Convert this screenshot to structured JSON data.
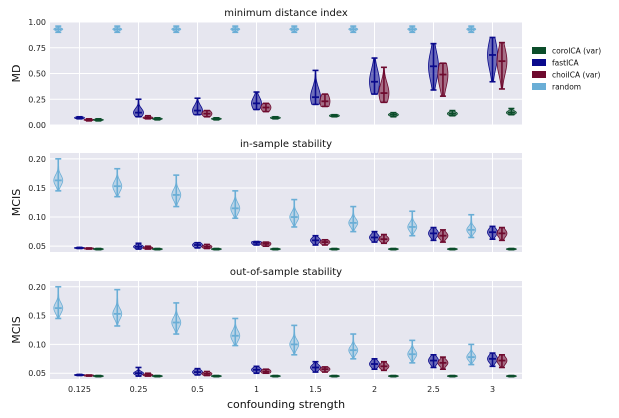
{
  "colors": {
    "coroICA (var)": "#0b4d2a",
    "fastICA": "#0a0a8c",
    "choiICA (var)": "#6e0a2e",
    "random": "#6aaed6",
    "panel_bg": "#e6e6ef"
  },
  "chart_data": [
    {
      "type": "violin",
      "title": "minimum distance index",
      "ylabel": "MD",
      "ylim": [
        0.0,
        1.0
      ],
      "yticks": [
        0.0,
        0.25,
        0.5,
        0.75,
        1.0
      ],
      "ytick_labels": [
        "0.00",
        "0.25",
        "0.50",
        "0.75",
        "1.00"
      ],
      "xlabel": "",
      "categories": [
        "0.125",
        "0.25",
        "0.5",
        "1",
        "1.5",
        "2",
        "2.5",
        "3"
      ],
      "series": [
        {
          "name": "random",
          "median": [
            0.93,
            0.93,
            0.93,
            0.93,
            0.93,
            0.93,
            0.93,
            0.93
          ],
          "low": [
            0.9,
            0.9,
            0.9,
            0.9,
            0.9,
            0.9,
            0.9,
            0.9
          ],
          "high": [
            0.96,
            0.96,
            0.96,
            0.96,
            0.96,
            0.96,
            0.96,
            0.96
          ],
          "spread": [
            0.012,
            0.012,
            0.012,
            0.012,
            0.012,
            0.012,
            0.012,
            0.012
          ]
        },
        {
          "name": "fastICA",
          "median": [
            0.07,
            0.12,
            0.14,
            0.21,
            0.27,
            0.42,
            0.57,
            0.68
          ],
          "low": [
            0.06,
            0.08,
            0.1,
            0.15,
            0.2,
            0.3,
            0.34,
            0.42
          ],
          "high": [
            0.08,
            0.25,
            0.26,
            0.32,
            0.53,
            0.65,
            0.79,
            0.85
          ],
          "spread": [
            0.01,
            0.04,
            0.05,
            0.06,
            0.09,
            0.12,
            0.14,
            0.14
          ]
        },
        {
          "name": "choiICA (var)",
          "median": [
            0.05,
            0.07,
            0.11,
            0.17,
            0.23,
            0.31,
            0.49,
            0.62
          ],
          "low": [
            0.04,
            0.06,
            0.08,
            0.13,
            0.18,
            0.22,
            0.28,
            0.35
          ],
          "high": [
            0.06,
            0.09,
            0.14,
            0.21,
            0.3,
            0.56,
            0.6,
            0.8
          ],
          "spread": [
            0.008,
            0.01,
            0.03,
            0.04,
            0.07,
            0.1,
            0.13,
            0.13
          ]
        },
        {
          "name": "coroICA (var)",
          "median": [
            0.05,
            0.06,
            0.06,
            0.07,
            0.09,
            0.1,
            0.11,
            0.12
          ],
          "low": [
            0.04,
            0.05,
            0.05,
            0.06,
            0.08,
            0.08,
            0.09,
            0.1
          ],
          "high": [
            0.06,
            0.07,
            0.07,
            0.08,
            0.1,
            0.12,
            0.14,
            0.16
          ],
          "spread": [
            0.008,
            0.008,
            0.008,
            0.01,
            0.012,
            0.015,
            0.018,
            0.018
          ]
        }
      ]
    },
    {
      "type": "violin",
      "title": "in-sample stability",
      "ylabel": "MCIS",
      "ylim": [
        0.04,
        0.21
      ],
      "yticks": [
        0.05,
        0.1,
        0.15,
        0.2
      ],
      "ytick_labels": [
        "0.05",
        "0.10",
        "0.15",
        "0.20"
      ],
      "xlabel": "",
      "categories": [
        "0.125",
        "0.25",
        "0.5",
        "1",
        "1.5",
        "2",
        "2.5",
        "3"
      ],
      "series": [
        {
          "name": "random",
          "median": [
            0.163,
            0.153,
            0.138,
            0.115,
            0.1,
            0.09,
            0.083,
            0.078
          ],
          "low": [
            0.145,
            0.135,
            0.118,
            0.098,
            0.083,
            0.075,
            0.068,
            0.065
          ],
          "high": [
            0.2,
            0.183,
            0.172,
            0.145,
            0.13,
            0.118,
            0.11,
            0.104
          ],
          "spread": [
            0.009,
            0.009,
            0.009,
            0.009,
            0.008,
            0.007,
            0.007,
            0.006
          ]
        },
        {
          "name": "fastICA",
          "median": [
            0.047,
            0.049,
            0.052,
            0.056,
            0.06,
            0.065,
            0.072,
            0.074
          ],
          "low": [
            0.046,
            0.045,
            0.047,
            0.052,
            0.052,
            0.057,
            0.06,
            0.062
          ],
          "high": [
            0.048,
            0.055,
            0.056,
            0.058,
            0.068,
            0.075,
            0.082,
            0.084
          ],
          "spread": [
            0.002,
            0.003,
            0.004,
            0.004,
            0.005,
            0.006,
            0.007,
            0.007
          ]
        },
        {
          "name": "choiICA (var)",
          "median": [
            0.046,
            0.047,
            0.049,
            0.054,
            0.057,
            0.062,
            0.068,
            0.072
          ],
          "low": [
            0.045,
            0.045,
            0.046,
            0.05,
            0.052,
            0.055,
            0.057,
            0.06
          ],
          "high": [
            0.047,
            0.05,
            0.053,
            0.057,
            0.061,
            0.07,
            0.078,
            0.082
          ],
          "spread": [
            0.0015,
            0.002,
            0.003,
            0.004,
            0.004,
            0.005,
            0.006,
            0.007
          ]
        },
        {
          "name": "coroICA (var)",
          "median": [
            0.045,
            0.045,
            0.045,
            0.045,
            0.045,
            0.045,
            0.045,
            0.045
          ],
          "low": [
            0.044,
            0.044,
            0.044,
            0.044,
            0.044,
            0.044,
            0.044,
            0.044
          ],
          "high": [
            0.046,
            0.046,
            0.046,
            0.046,
            0.046,
            0.046,
            0.046,
            0.046
          ],
          "spread": [
            0.0015,
            0.0015,
            0.0015,
            0.0015,
            0.0015,
            0.0015,
            0.0015,
            0.0015
          ]
        }
      ]
    },
    {
      "type": "violin",
      "title": "out-of-sample stability",
      "ylabel": "MCIS",
      "ylim": [
        0.04,
        0.21
      ],
      "yticks": [
        0.05,
        0.1,
        0.15,
        0.2
      ],
      "ytick_labels": [
        "0.05",
        "0.10",
        "0.15",
        "0.20"
      ],
      "xlabel": "confounding strength",
      "categories": [
        "0.125",
        "0.25",
        "0.5",
        "1",
        "1.5",
        "2",
        "2.5",
        "3"
      ],
      "series": [
        {
          "name": "random",
          "median": [
            0.163,
            0.153,
            0.138,
            0.115,
            0.1,
            0.09,
            0.083,
            0.078
          ],
          "low": [
            0.145,
            0.132,
            0.118,
            0.098,
            0.082,
            0.075,
            0.068,
            0.065
          ],
          "high": [
            0.2,
            0.195,
            0.172,
            0.145,
            0.133,
            0.118,
            0.107,
            0.1
          ],
          "spread": [
            0.009,
            0.009,
            0.009,
            0.009,
            0.008,
            0.007,
            0.007,
            0.006
          ]
        },
        {
          "name": "fastICA",
          "median": [
            0.047,
            0.05,
            0.052,
            0.056,
            0.06,
            0.066,
            0.072,
            0.075
          ],
          "low": [
            0.046,
            0.045,
            0.047,
            0.05,
            0.052,
            0.057,
            0.06,
            0.062
          ],
          "high": [
            0.048,
            0.06,
            0.058,
            0.062,
            0.07,
            0.075,
            0.082,
            0.085
          ],
          "spread": [
            0.002,
            0.003,
            0.004,
            0.004,
            0.005,
            0.006,
            0.007,
            0.007
          ]
        },
        {
          "name": "choiICA (var)",
          "median": [
            0.046,
            0.047,
            0.049,
            0.053,
            0.057,
            0.062,
            0.068,
            0.072
          ],
          "low": [
            0.045,
            0.045,
            0.046,
            0.05,
            0.052,
            0.055,
            0.057,
            0.06
          ],
          "high": [
            0.047,
            0.05,
            0.053,
            0.057,
            0.061,
            0.07,
            0.078,
            0.082
          ],
          "spread": [
            0.0015,
            0.002,
            0.003,
            0.004,
            0.004,
            0.005,
            0.006,
            0.007
          ]
        },
        {
          "name": "coroICA (var)",
          "median": [
            0.045,
            0.045,
            0.045,
            0.045,
            0.045,
            0.045,
            0.045,
            0.045
          ],
          "low": [
            0.044,
            0.044,
            0.044,
            0.044,
            0.044,
            0.044,
            0.044,
            0.044
          ],
          "high": [
            0.046,
            0.046,
            0.046,
            0.046,
            0.046,
            0.046,
            0.046,
            0.046
          ],
          "spread": [
            0.0015,
            0.0015,
            0.0015,
            0.0015,
            0.0015,
            0.0015,
            0.0015,
            0.0015
          ]
        }
      ]
    }
  ],
  "legend": {
    "position": "right",
    "entries": [
      "coroICA (var)",
      "fastICA",
      "choiICA (var)",
      "random"
    ]
  }
}
